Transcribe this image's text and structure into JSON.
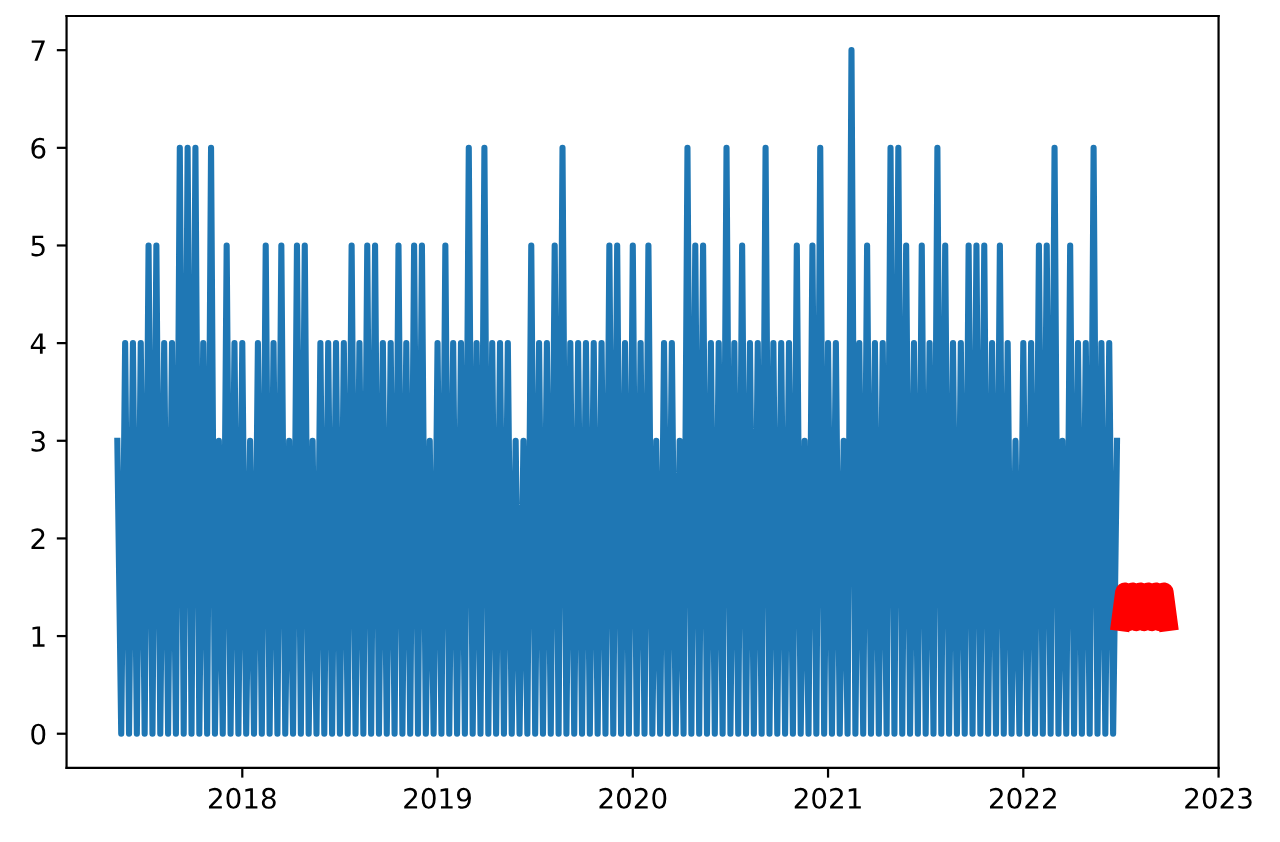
{
  "chart_data": {
    "type": "line",
    "xlim": [
      2017.1,
      2023.0
    ],
    "xticks": [
      2018,
      2019,
      2020,
      2021,
      2022,
      2023
    ],
    "ylim": [
      -0.35,
      7.35
    ],
    "yticks": [
      0,
      1,
      2,
      3,
      4,
      5,
      6,
      7
    ],
    "grid": false,
    "legend": false,
    "series": [
      {
        "color": "#1f77b4",
        "x": [
          2017.36,
          2017.38,
          2017.4,
          2017.42,
          2017.44,
          2017.46,
          2017.48,
          2017.5,
          2017.52,
          2017.54,
          2017.56,
          2017.58,
          2017.6,
          2017.62,
          2017.64,
          2017.66,
          2017.68,
          2017.7,
          2017.72,
          2017.74,
          2017.76,
          2017.78,
          2017.8,
          2017.82,
          2017.84,
          2017.86,
          2017.88,
          2017.9,
          2017.92,
          2017.94,
          2017.96,
          2017.98,
          2018.0,
          2018.02,
          2018.04,
          2018.06,
          2018.08,
          2018.1,
          2018.12,
          2018.14,
          2018.16,
          2018.18,
          2018.2,
          2018.22,
          2018.24,
          2018.26,
          2018.28,
          2018.3,
          2018.32,
          2018.34,
          2018.36,
          2018.38,
          2018.4,
          2018.42,
          2018.44,
          2018.46,
          2018.48,
          2018.5,
          2018.52,
          2018.54,
          2018.56,
          2018.58,
          2018.6,
          2018.62,
          2018.64,
          2018.66,
          2018.68,
          2018.7,
          2018.72,
          2018.74,
          2018.76,
          2018.78,
          2018.8,
          2018.82,
          2018.84,
          2018.86,
          2018.88,
          2018.9,
          2018.92,
          2018.94,
          2018.96,
          2018.98,
          2019.0,
          2019.02,
          2019.04,
          2019.06,
          2019.08,
          2019.1,
          2019.12,
          2019.14,
          2019.16,
          2019.18,
          2019.2,
          2019.22,
          2019.24,
          2019.26,
          2019.28,
          2019.3,
          2019.32,
          2019.34,
          2019.36,
          2019.38,
          2019.4,
          2019.42,
          2019.44,
          2019.46,
          2019.48,
          2019.5,
          2019.52,
          2019.54,
          2019.56,
          2019.58,
          2019.6,
          2019.62,
          2019.64,
          2019.66,
          2019.68,
          2019.7,
          2019.72,
          2019.74,
          2019.76,
          2019.78,
          2019.8,
          2019.82,
          2019.84,
          2019.86,
          2019.88,
          2019.9,
          2019.92,
          2019.94,
          2019.96,
          2019.98,
          2020.0,
          2020.02,
          2020.04,
          2020.06,
          2020.08,
          2020.1,
          2020.12,
          2020.14,
          2020.16,
          2020.18,
          2020.2,
          2020.22,
          2020.24,
          2020.26,
          2020.28,
          2020.3,
          2020.32,
          2020.34,
          2020.36,
          2020.38,
          2020.4,
          2020.42,
          2020.44,
          2020.46,
          2020.48,
          2020.5,
          2020.52,
          2020.54,
          2020.56,
          2020.58,
          2020.6,
          2020.62,
          2020.64,
          2020.66,
          2020.68,
          2020.7,
          2020.72,
          2020.74,
          2020.76,
          2020.78,
          2020.8,
          2020.82,
          2020.84,
          2020.86,
          2020.88,
          2020.9,
          2020.92,
          2020.94,
          2020.96,
          2020.98,
          2021.0,
          2021.02,
          2021.04,
          2021.06,
          2021.08,
          2021.1,
          2021.12,
          2021.14,
          2021.16,
          2021.18,
          2021.2,
          2021.22,
          2021.24,
          2021.26,
          2021.28,
          2021.3,
          2021.32,
          2021.34,
          2021.36,
          2021.38,
          2021.4,
          2021.42,
          2021.44,
          2021.46,
          2021.48,
          2021.5,
          2021.52,
          2021.54,
          2021.56,
          2021.58,
          2021.6,
          2021.62,
          2021.64,
          2021.66,
          2021.68,
          2021.7,
          2021.72,
          2021.74,
          2021.76,
          2021.78,
          2021.8,
          2021.82,
          2021.84,
          2021.86,
          2021.88,
          2021.9,
          2021.92,
          2021.94,
          2021.96,
          2021.98,
          2022.0,
          2022.02,
          2022.04,
          2022.06,
          2022.08,
          2022.1,
          2022.12,
          2022.14,
          2022.16,
          2022.18,
          2022.2,
          2022.22,
          2022.24,
          2022.26,
          2022.28,
          2022.3,
          2022.32,
          2022.34,
          2022.36,
          2022.38,
          2022.4,
          2022.42,
          2022.44,
          2022.46,
          2022.48
        ],
        "values": [
          3,
          0,
          4,
          0,
          4,
          0,
          4,
          0,
          5,
          0,
          5,
          0,
          4,
          0,
          4,
          0,
          6,
          0,
          6,
          0,
          6,
          0,
          4,
          0,
          6,
          0,
          3,
          0,
          5,
          0,
          4,
          0,
          4,
          0,
          3,
          0,
          4,
          0,
          5,
          0,
          4,
          0,
          5,
          0,
          3,
          0,
          5,
          0,
          5,
          0,
          3,
          0,
          4,
          0,
          4,
          0,
          4,
          0,
          4,
          0,
          5,
          0,
          4,
          0,
          5,
          0,
          5,
          0,
          4,
          0,
          4,
          0,
          5,
          0,
          4,
          0,
          5,
          0,
          5,
          0,
          3,
          0,
          4,
          0,
          5,
          0,
          4,
          0,
          4,
          0,
          6,
          0,
          4,
          0,
          6,
          0,
          4,
          0,
          4,
          0,
          4,
          0,
          3,
          0,
          3,
          0,
          5,
          0,
          4,
          0,
          4,
          0,
          5,
          0,
          6,
          0,
          4,
          0,
          4,
          0,
          4,
          0,
          4,
          0,
          4,
          0,
          5,
          0,
          5,
          0,
          4,
          0,
          5,
          0,
          4,
          0,
          5,
          0,
          3,
          0,
          4,
          0,
          4,
          0,
          3,
          0,
          6,
          0,
          5,
          0,
          5,
          0,
          4,
          0,
          4,
          0,
          6,
          0,
          4,
          0,
          5,
          0,
          4,
          0,
          4,
          0,
          6,
          0,
          4,
          0,
          4,
          0,
          4,
          0,
          5,
          0,
          3,
          0,
          5,
          0,
          6,
          0,
          4,
          0,
          4,
          0,
          3,
          0,
          7,
          0,
          4,
          0,
          5,
          0,
          4,
          0,
          4,
          0,
          6,
          0,
          6,
          0,
          5,
          0,
          4,
          0,
          5,
          0,
          4,
          0,
          6,
          0,
          5,
          0,
          4,
          0,
          4,
          0,
          5,
          0,
          5,
          0,
          5,
          0,
          4,
          0,
          5,
          0,
          4,
          0,
          3,
          0,
          4,
          0,
          4,
          0,
          5,
          0,
          5,
          0,
          6,
          0,
          3,
          0,
          5,
          0,
          4,
          0,
          4,
          0,
          6,
          0,
          4,
          0,
          4,
          0,
          3
        ]
      },
      {
        "color": "#ff0000",
        "x": [
          2022.5,
          2022.52,
          2022.54,
          2022.56,
          2022.58,
          2022.6,
          2022.62,
          2022.64,
          2022.66,
          2022.68,
          2022.7,
          2022.72,
          2022.74
        ],
        "values": [
          1.15,
          1.45,
          1.15,
          1.45,
          1.15,
          1.45,
          1.15,
          1.45,
          1.15,
          1.45,
          1.15,
          1.45,
          1.15
        ]
      }
    ]
  }
}
